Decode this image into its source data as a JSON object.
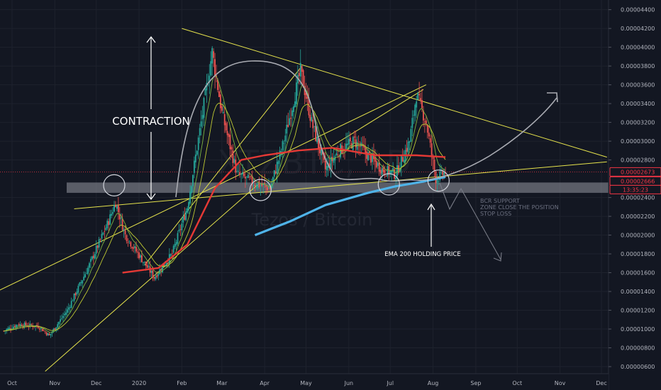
{
  "chart_data": {
    "type": "candlestick",
    "symbol_watermark": "XTZBTC, 1D",
    "subtitle_watermark": "Tezos / Bitcoin",
    "x_axis": [
      "Oct",
      "Nov",
      "Dec",
      "2020",
      "Feb",
      "Mar",
      "Apr",
      "May",
      "Jun",
      "Jul",
      "Aug",
      "Sep",
      "Oct",
      "Nov",
      "Dec"
    ],
    "y_axis": [
      "0.00004400",
      "0.00004200",
      "0.00004000",
      "0.00003800",
      "0.00003600",
      "0.00003400",
      "0.00003200",
      "0.00003000",
      "0.00002800",
      "0.00002400",
      "0.00002200",
      "0.00002000",
      "0.00001800",
      "0.00001600",
      "0.00001400",
      "0.00001200",
      "0.00001000",
      "0.00000800",
      "0.00000600"
    ],
    "ylim": [
      5.7e-06,
      4.45e-05
    ],
    "price_markers": [
      {
        "label": "0.00002673",
        "color": "#f23645"
      },
      {
        "label": "0.00002666",
        "color": "#f23645"
      },
      {
        "label": "13:35:23",
        "color": "#f23645"
      }
    ],
    "annotations": {
      "contraction": "CONTRACTION",
      "ema200": "EMA 200 HOLDING PRICE",
      "bcr_1": "BCR SUPPORT",
      "bcr_2": "ZONE CLOSE THE POSITION",
      "bcr_3": "STOP LOSS"
    },
    "close_path": [
      [
        "2019-09-25",
        9.8e-06
      ],
      [
        "2019-10-05",
        1.05e-05
      ],
      [
        "2019-10-20",
        1.03e-05
      ],
      [
        "2019-10-28",
        9.3e-06
      ],
      [
        "2019-11-10",
        1.2e-05
      ],
      [
        "2019-11-25",
        1.65e-05
      ],
      [
        "2019-12-10",
        2.15e-05
      ],
      [
        "2019-12-15",
        2.35e-05
      ],
      [
        "2019-12-22",
        2e-05
      ],
      [
        "2020-01-05",
        1.7e-05
      ],
      [
        "2020-01-12",
        1.55e-05
      ],
      [
        "2020-01-25",
        1.8e-05
      ],
      [
        "2020-02-05",
        2.3e-05
      ],
      [
        "2020-02-15",
        3.2e-05
      ],
      [
        "2020-02-23",
        3.95e-05
      ],
      [
        "2020-03-01",
        3.3e-05
      ],
      [
        "2020-03-12",
        2.65e-05
      ],
      [
        "2020-03-25",
        2.55e-05
      ],
      [
        "2020-04-05",
        2.5e-05
      ],
      [
        "2020-04-15",
        3e-05
      ],
      [
        "2020-04-27",
        3.75e-05
      ],
      [
        "2020-05-05",
        3.2e-05
      ],
      [
        "2020-05-15",
        2.7e-05
      ],
      [
        "2020-05-25",
        2.9e-05
      ],
      [
        "2020-06-05",
        3e-05
      ],
      [
        "2020-06-15",
        2.85e-05
      ],
      [
        "2020-06-25",
        2.7e-05
      ],
      [
        "2020-07-05",
        2.65e-05
      ],
      [
        "2020-07-15",
        3e-05
      ],
      [
        "2020-07-20",
        3.5e-05
      ],
      [
        "2020-07-27",
        3.2e-05
      ],
      [
        "2020-08-03",
        2.6e-05
      ],
      [
        "2020-08-10",
        2.67e-05
      ]
    ],
    "ema200": [
      [
        "2020-03-25",
        2e-05
      ],
      [
        "2020-04-20",
        2.15e-05
      ],
      [
        "2020-05-15",
        2.32e-05
      ],
      [
        "2020-06-15",
        2.45e-05
      ],
      [
        "2020-07-05",
        2.52e-05
      ],
      [
        "2020-07-25",
        2.57e-05
      ],
      [
        "2020-08-10",
        2.62e-05
      ]
    ],
    "ema50": [
      [
        "2019-12-20",
        1.6e-05
      ],
      [
        "2020-01-15",
        1.65e-05
      ],
      [
        "2020-02-05",
        1.9e-05
      ],
      [
        "2020-02-25",
        2.5e-05
      ],
      [
        "2020-03-15",
        2.8e-05
      ],
      [
        "2020-04-01",
        2.85e-05
      ],
      [
        "2020-04-25",
        2.9e-05
      ],
      [
        "2020-05-20",
        2.93e-05
      ],
      [
        "2020-06-20",
        2.85e-05
      ],
      [
        "2020-07-20",
        2.85e-05
      ],
      [
        "2020-08-10",
        2.83e-05
      ]
    ],
    "trendlines": [
      {
        "from": [
          "2019-09-20",
          1.4e-05
        ],
        "to": [
          "2020-07-27",
          3.6e-05
        ],
        "color": "#e6e34c"
      },
      {
        "from": [
          "2019-10-25",
          5.5e-06
        ],
        "to": [
          "2020-03-28",
          2.55e-05
        ],
        "color": "#e6e34c"
      },
      {
        "from": [
          "2019-11-15",
          2.28e-05
        ],
        "to": [
          "2020-12-05",
          2.78e-05
        ],
        "color": "#e6e34c"
      },
      {
        "from": [
          "2020-02-01",
          4.2e-05
        ],
        "to": [
          "2020-12-05",
          2.83e-05
        ],
        "color": "#e6e34c"
      },
      {
        "from": [
          "2020-01-05",
          1.68e-05
        ],
        "to": [
          "2020-04-28",
          3.8e-05
        ],
        "color": "#e6e34c"
      },
      {
        "from": [
          "2020-05-20",
          2.95e-05
        ],
        "to": [
          "2020-07-25",
          3.55e-05
        ],
        "color": "#e6e34c"
      }
    ],
    "support_zone": {
      "from": 2.45e-05,
      "to": 2.56e-05,
      "color": "#9598a1"
    },
    "circles": [
      [
        "2019-12-14",
        2.53e-05
      ],
      [
        "2020-03-29",
        2.48e-05
      ],
      [
        "2020-06-30",
        2.54e-05
      ],
      [
        "2020-08-05",
        2.58e-05
      ]
    ]
  }
}
